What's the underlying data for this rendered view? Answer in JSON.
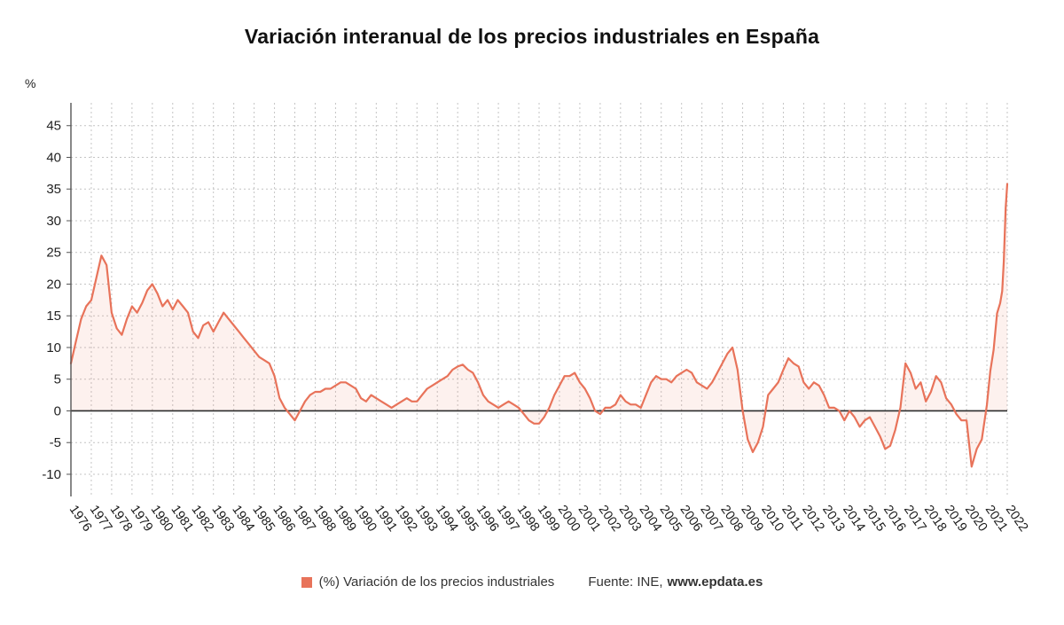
{
  "title": "Variación interanual de los precios industriales en España",
  "y_unit": "%",
  "legend": {
    "series_label": "(%) Variación de los precios industriales",
    "source_prefix": "Fuente: INE,",
    "source_link": "www.epdata.es"
  },
  "colors": {
    "line": "#e8735a",
    "fill": "rgba(232,115,90,0.10)",
    "grid": "#c4c4c4",
    "zero": "#2b2b2b",
    "axis": "#555555",
    "text": "#222222"
  },
  "chart_data": {
    "type": "line",
    "title": "Variación interanual de los precios industriales en España",
    "xlabel": "",
    "ylabel": "%",
    "ylim": [
      -10,
      45
    ],
    "y_tick_step": 5,
    "grid": "dashed",
    "legend_position": "bottom",
    "x_ticks": [
      1976,
      1977,
      1978,
      1979,
      1980,
      1981,
      1982,
      1983,
      1984,
      1985,
      1986,
      1987,
      1988,
      1989,
      1990,
      1991,
      1992,
      1993,
      1994,
      1995,
      1996,
      1997,
      1998,
      1999,
      2000,
      2001,
      2002,
      2003,
      2004,
      2005,
      2006,
      2007,
      2008,
      2009,
      2010,
      2011,
      2012,
      2013,
      2014,
      2015,
      2016,
      2017,
      2018,
      2019,
      2020,
      2021,
      2022
    ],
    "series": [
      {
        "name": "(%) Variación de los precios industriales",
        "color": "#e8735a",
        "points": [
          [
            1976.0,
            7.5
          ],
          [
            1976.25,
            11
          ],
          [
            1976.5,
            14.5
          ],
          [
            1976.75,
            16.5
          ],
          [
            1977.0,
            17.5
          ],
          [
            1977.25,
            21
          ],
          [
            1977.5,
            24.5
          ],
          [
            1977.75,
            23
          ],
          [
            1978.0,
            15.5
          ],
          [
            1978.25,
            13
          ],
          [
            1978.5,
            12
          ],
          [
            1978.75,
            14.5
          ],
          [
            1979.0,
            16.5
          ],
          [
            1979.25,
            15.5
          ],
          [
            1979.5,
            17
          ],
          [
            1979.75,
            19
          ],
          [
            1980.0,
            20
          ],
          [
            1980.25,
            18.5
          ],
          [
            1980.5,
            16.5
          ],
          [
            1980.75,
            17.5
          ],
          [
            1981.0,
            16
          ],
          [
            1981.25,
            17.5
          ],
          [
            1981.5,
            16.5
          ],
          [
            1981.75,
            15.5
          ],
          [
            1982.0,
            12.5
          ],
          [
            1982.25,
            11.5
          ],
          [
            1982.5,
            13.5
          ],
          [
            1982.75,
            14
          ],
          [
            1983.0,
            12.5
          ],
          [
            1983.25,
            14
          ],
          [
            1983.5,
            15.5
          ],
          [
            1983.75,
            14.5
          ],
          [
            1984.0,
            13.5
          ],
          [
            1984.25,
            12.5
          ],
          [
            1984.5,
            11.5
          ],
          [
            1984.75,
            10.5
          ],
          [
            1985.0,
            9.5
          ],
          [
            1985.25,
            8.5
          ],
          [
            1985.5,
            8
          ],
          [
            1985.75,
            7.5
          ],
          [
            1986.0,
            5.5
          ],
          [
            1986.25,
            2
          ],
          [
            1986.5,
            0.5
          ],
          [
            1986.75,
            -0.5
          ],
          [
            1987.0,
            -1.5
          ],
          [
            1987.25,
            0
          ],
          [
            1987.5,
            1.5
          ],
          [
            1987.75,
            2.5
          ],
          [
            1988.0,
            3
          ],
          [
            1988.25,
            3
          ],
          [
            1988.5,
            3.5
          ],
          [
            1988.75,
            3.5
          ],
          [
            1989.0,
            4
          ],
          [
            1989.25,
            4.5
          ],
          [
            1989.5,
            4.5
          ],
          [
            1989.75,
            4
          ],
          [
            1990.0,
            3.5
          ],
          [
            1990.25,
            2
          ],
          [
            1990.5,
            1.5
          ],
          [
            1990.75,
            2.5
          ],
          [
            1991.0,
            2
          ],
          [
            1991.25,
            1.5
          ],
          [
            1991.5,
            1
          ],
          [
            1991.75,
            0.5
          ],
          [
            1992.0,
            1
          ],
          [
            1992.25,
            1.5
          ],
          [
            1992.5,
            2
          ],
          [
            1992.75,
            1.5
          ],
          [
            1993.0,
            1.5
          ],
          [
            1993.25,
            2.5
          ],
          [
            1993.5,
            3.5
          ],
          [
            1993.75,
            4
          ],
          [
            1994.0,
            4.5
          ],
          [
            1994.25,
            5
          ],
          [
            1994.5,
            5.5
          ],
          [
            1994.75,
            6.5
          ],
          [
            1995.0,
            7
          ],
          [
            1995.25,
            7.3
          ],
          [
            1995.5,
            6.5
          ],
          [
            1995.75,
            6
          ],
          [
            1996.0,
            4.5
          ],
          [
            1996.25,
            2.5
          ],
          [
            1996.5,
            1.5
          ],
          [
            1996.75,
            1
          ],
          [
            1997.0,
            0.5
          ],
          [
            1997.25,
            1
          ],
          [
            1997.5,
            1.5
          ],
          [
            1997.75,
            1
          ],
          [
            1998.0,
            0.5
          ],
          [
            1998.25,
            -0.5
          ],
          [
            1998.5,
            -1.5
          ],
          [
            1998.75,
            -2
          ],
          [
            1999.0,
            -2
          ],
          [
            1999.25,
            -1
          ],
          [
            1999.5,
            0.5
          ],
          [
            1999.75,
            2.5
          ],
          [
            2000.0,
            4
          ],
          [
            2000.25,
            5.5
          ],
          [
            2000.5,
            5.5
          ],
          [
            2000.75,
            6
          ],
          [
            2001.0,
            4.5
          ],
          [
            2001.25,
            3.5
          ],
          [
            2001.5,
            2
          ],
          [
            2001.75,
            0
          ],
          [
            2002.0,
            -0.5
          ],
          [
            2002.25,
            0.5
          ],
          [
            2002.5,
            0.5
          ],
          [
            2002.75,
            1
          ],
          [
            2003.0,
            2.5
          ],
          [
            2003.25,
            1.5
          ],
          [
            2003.5,
            1
          ],
          [
            2003.75,
            1
          ],
          [
            2004.0,
            0.5
          ],
          [
            2004.25,
            2.5
          ],
          [
            2004.5,
            4.5
          ],
          [
            2004.75,
            5.5
          ],
          [
            2005.0,
            5
          ],
          [
            2005.25,
            5
          ],
          [
            2005.5,
            4.5
          ],
          [
            2005.75,
            5.5
          ],
          [
            2006.0,
            6
          ],
          [
            2006.25,
            6.5
          ],
          [
            2006.5,
            6
          ],
          [
            2006.75,
            4.5
          ],
          [
            2007.0,
            4
          ],
          [
            2007.25,
            3.5
          ],
          [
            2007.5,
            4.5
          ],
          [
            2007.75,
            6
          ],
          [
            2008.0,
            7.5
          ],
          [
            2008.25,
            9
          ],
          [
            2008.5,
            10
          ],
          [
            2008.75,
            6.5
          ],
          [
            2009.0,
            0
          ],
          [
            2009.25,
            -4.5
          ],
          [
            2009.5,
            -6.5
          ],
          [
            2009.75,
            -5
          ],
          [
            2010.0,
            -2.5
          ],
          [
            2010.25,
            2.5
          ],
          [
            2010.5,
            3.5
          ],
          [
            2010.75,
            4.5
          ],
          [
            2011.0,
            6.5
          ],
          [
            2011.25,
            8.3
          ],
          [
            2011.5,
            7.5
          ],
          [
            2011.75,
            7
          ],
          [
            2012.0,
            4.5
          ],
          [
            2012.25,
            3.5
          ],
          [
            2012.5,
            4.5
          ],
          [
            2012.75,
            4
          ],
          [
            2013.0,
            2.5
          ],
          [
            2013.25,
            0.5
          ],
          [
            2013.5,
            0.5
          ],
          [
            2013.75,
            0
          ],
          [
            2014.0,
            -1.5
          ],
          [
            2014.25,
            0
          ],
          [
            2014.5,
            -1
          ],
          [
            2014.75,
            -2.5
          ],
          [
            2015.0,
            -1.5
          ],
          [
            2015.25,
            -1
          ],
          [
            2015.5,
            -2.5
          ],
          [
            2015.75,
            -4
          ],
          [
            2016.0,
            -6
          ],
          [
            2016.25,
            -5.5
          ],
          [
            2016.5,
            -3
          ],
          [
            2016.75,
            0.5
          ],
          [
            2017.0,
            7.5
          ],
          [
            2017.25,
            6
          ],
          [
            2017.5,
            3.5
          ],
          [
            2017.75,
            4.5
          ],
          [
            2018.0,
            1.5
          ],
          [
            2018.25,
            3
          ],
          [
            2018.5,
            5.5
          ],
          [
            2018.75,
            4.5
          ],
          [
            2019.0,
            2
          ],
          [
            2019.25,
            1
          ],
          [
            2019.5,
            -0.5
          ],
          [
            2019.75,
            -1.5
          ],
          [
            2020.0,
            -1.5
          ],
          [
            2020.25,
            -8.8
          ],
          [
            2020.5,
            -6
          ],
          [
            2020.75,
            -4.5
          ],
          [
            2021.0,
            0.9
          ],
          [
            2021.17,
            6.3
          ],
          [
            2021.33,
            9.6
          ],
          [
            2021.5,
            15.4
          ],
          [
            2021.65,
            17
          ],
          [
            2021.75,
            18.9
          ],
          [
            2021.83,
            23.6
          ],
          [
            2021.92,
            32
          ],
          [
            2022.0,
            35.8
          ]
        ]
      }
    ]
  }
}
